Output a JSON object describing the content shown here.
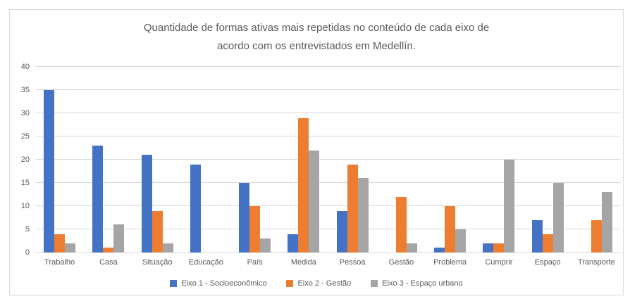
{
  "frame": {
    "border_color": "#D9D9D9",
    "background": "#ffffff"
  },
  "chart_data": {
    "type": "bar",
    "title": "Quantidade de formas ativas mais repetidas no conteúdo de cada eixo de\nacordo com os entrevistados em Medellín.",
    "title_color": "#595959",
    "categories": [
      "Trabalho",
      "Casa",
      "Situação",
      "Educação",
      "País",
      "Medida",
      "Pessoa",
      "Gestão",
      "Problema",
      "Cumprir",
      "Espaço",
      "Transporte"
    ],
    "series": [
      {
        "name": "Eixo 1 - Socioeconômico",
        "color": "#4472C4",
        "values": [
          35,
          23,
          21,
          19,
          15,
          4,
          9,
          0,
          1,
          2,
          7,
          0
        ]
      },
      {
        "name": "Eixo 2 - Gestão",
        "color": "#ED7D31",
        "values": [
          4,
          1,
          9,
          0,
          10,
          29,
          19,
          12,
          10,
          2,
          4,
          7
        ]
      },
      {
        "name": "Eixo 3 - Espaço urbano",
        "color": "#A5A5A5",
        "values": [
          2,
          6,
          2,
          0,
          3,
          22,
          16,
          2,
          5,
          20,
          15,
          13
        ]
      }
    ],
    "xlabel": "",
    "ylabel": "",
    "ylim": [
      0,
      40
    ],
    "ytick_step": 5,
    "grid": true,
    "grid_color": "#D9D9D9",
    "axis_text_color": "#595959",
    "legend_position": "bottom"
  }
}
